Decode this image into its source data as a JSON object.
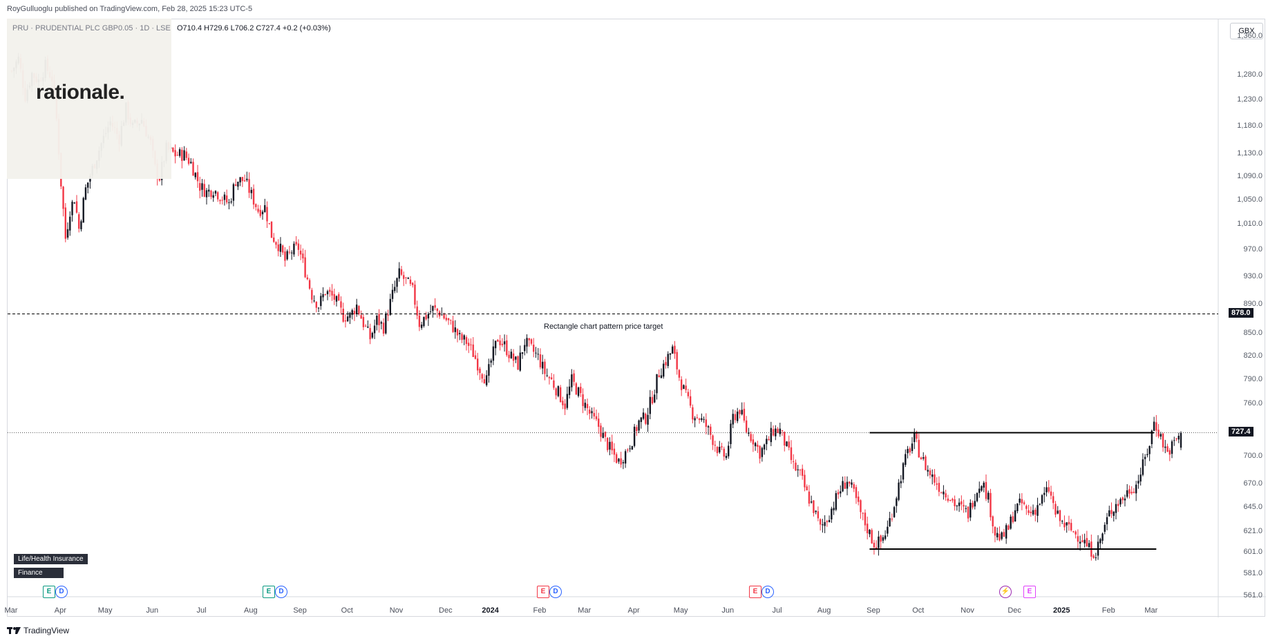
{
  "header": {
    "publisher": "RoyGulluoglu published on TradingView.com, Feb 28, 2025 15:23 UTC-5"
  },
  "symbol": {
    "line": "PRU · PRUDENTIAL PLC GBP0.05 · 1D · LSE",
    "ohlc": "O710.4  H729.6  L706.2  C727.4  +0.2 (+0.03%)"
  },
  "logo": {
    "text": "rationale."
  },
  "sector": {
    "industry": "Life/Health Insurance",
    "sector": "Finance"
  },
  "currency": "GBX",
  "annotation": "Rectangle chart pattern price target",
  "footer": {
    "brand": "TradingView"
  },
  "colors": {
    "up": "#131722",
    "down": "#f23645",
    "line": "#000000",
    "grid": "#e0e3eb"
  },
  "chart_data": {
    "type": "candlestick",
    "symbol": "PRU",
    "ylim": [
      561,
      1400
    ],
    "y_scale": "log",
    "y_ticks": [
      "1,360.0",
      "1,280.0",
      "1,230.0",
      "1,180.0",
      "1,130.0",
      "1,090.0",
      "1,050.0",
      "1,010.0",
      "970.0",
      "930.0",
      "890.0",
      "850.0",
      "820.0",
      "790.0",
      "760.0",
      "727.4",
      "700.0",
      "670.0",
      "645.0",
      "621.0",
      "601.0",
      "581.0",
      "561.0"
    ],
    "y_tick_values": [
      1360,
      1280,
      1230,
      1180,
      1130,
      1090,
      1050,
      1010,
      970,
      930,
      890,
      850,
      820,
      790,
      760,
      727.4,
      700,
      670,
      645,
      621,
      601,
      581,
      561
    ],
    "x_labels": [
      "Mar",
      "Apr",
      "May",
      "Jun",
      "Jul",
      "Aug",
      "Sep",
      "Oct",
      "Nov",
      "Dec",
      "2024",
      "Feb",
      "Mar",
      "Apr",
      "May",
      "Jun",
      "Jul",
      "Aug",
      "Sep",
      "Oct",
      "Nov",
      "Dec",
      "2025",
      "Feb",
      "Mar"
    ],
    "x_label_index": [
      0,
      22,
      42,
      63,
      85,
      107,
      129,
      150,
      172,
      194,
      214,
      236,
      256,
      278,
      299,
      320,
      342,
      363,
      385,
      405,
      427,
      448,
      469,
      490,
      509
    ],
    "target_line": 878.0,
    "last_price": 727.4,
    "rectangle_top": 727.4,
    "rectangle_bottom": 605,
    "close_path": [
      [
        0,
        1290
      ],
      [
        3,
        1315
      ],
      [
        6,
        1240
      ],
      [
        9,
        1285
      ],
      [
        12,
        1270
      ],
      [
        15,
        1300
      ],
      [
        18,
        1275
      ],
      [
        20,
        1195
      ],
      [
        22,
        1080
      ],
      [
        24,
        990
      ],
      [
        26,
        1035
      ],
      [
        28,
        1055
      ],
      [
        30,
        1005
      ],
      [
        33,
        1070
      ],
      [
        36,
        1105
      ],
      [
        40,
        1150
      ],
      [
        44,
        1190
      ],
      [
        48,
        1160
      ],
      [
        51,
        1215
      ],
      [
        54,
        1180
      ],
      [
        58,
        1195
      ],
      [
        62,
        1150
      ],
      [
        64,
        1105
      ],
      [
        66,
        1090
      ],
      [
        69,
        1140
      ],
      [
        73,
        1130
      ],
      [
        77,
        1130
      ],
      [
        80,
        1115
      ],
      [
        84,
        1075
      ],
      [
        87,
        1065
      ],
      [
        90,
        1070
      ],
      [
        94,
        1055
      ],
      [
        97,
        1045
      ],
      [
        100,
        1085
      ],
      [
        104,
        1085
      ],
      [
        107,
        1060
      ],
      [
        110,
        1035
      ],
      [
        113,
        1040
      ],
      [
        116,
        995
      ],
      [
        119,
        980
      ],
      [
        122,
        955
      ],
      [
        125,
        970
      ],
      [
        128,
        975
      ],
      [
        131,
        940
      ],
      [
        134,
        905
      ],
      [
        137,
        890
      ],
      [
        140,
        910
      ],
      [
        144,
        900
      ],
      [
        148,
        875
      ],
      [
        151,
        875
      ],
      [
        154,
        890
      ],
      [
        157,
        865
      ],
      [
        160,
        845
      ],
      [
        163,
        870
      ],
      [
        166,
        860
      ],
      [
        170,
        905
      ],
      [
        173,
        935
      ],
      [
        176,
        925
      ],
      [
        179,
        910
      ],
      [
        182,
        865
      ],
      [
        185,
        875
      ],
      [
        188,
        885
      ],
      [
        191,
        880
      ],
      [
        194,
        870
      ],
      [
        197,
        860
      ],
      [
        200,
        845
      ],
      [
        203,
        840
      ],
      [
        206,
        825
      ],
      [
        209,
        805
      ],
      [
        212,
        790
      ],
      [
        214,
        815
      ],
      [
        217,
        845
      ],
      [
        220,
        835
      ],
      [
        223,
        820
      ],
      [
        226,
        810
      ],
      [
        229,
        840
      ],
      [
        232,
        830
      ],
      [
        235,
        820
      ],
      [
        238,
        800
      ],
      [
        241,
        790
      ],
      [
        244,
        775
      ],
      [
        247,
        760
      ],
      [
        250,
        790
      ],
      [
        253,
        775
      ],
      [
        256,
        760
      ],
      [
        259,
        745
      ],
      [
        262,
        735
      ],
      [
        265,
        718
      ],
      [
        268,
        705
      ],
      [
        271,
        695
      ],
      [
        274,
        705
      ],
      [
        277,
        720
      ],
      [
        280,
        740
      ],
      [
        283,
        745
      ],
      [
        286,
        770
      ],
      [
        289,
        800
      ],
      [
        292,
        815
      ],
      [
        295,
        830
      ],
      [
        298,
        795
      ],
      [
        301,
        770
      ],
      [
        304,
        750
      ],
      [
        307,
        745
      ],
      [
        310,
        735
      ],
      [
        313,
        720
      ],
      [
        316,
        705
      ],
      [
        319,
        700
      ],
      [
        322,
        745
      ],
      [
        325,
        755
      ],
      [
        328,
        730
      ],
      [
        331,
        720
      ],
      [
        334,
        705
      ],
      [
        337,
        715
      ],
      [
        340,
        730
      ],
      [
        343,
        730
      ],
      [
        346,
        710
      ],
      [
        349,
        690
      ],
      [
        352,
        680
      ],
      [
        355,
        660
      ],
      [
        358,
        645
      ],
      [
        361,
        625
      ],
      [
        364,
        635
      ],
      [
        367,
        650
      ],
      [
        370,
        665
      ],
      [
        373,
        675
      ],
      [
        376,
        660
      ],
      [
        379,
        640
      ],
      [
        382,
        625
      ],
      [
        385,
        610
      ],
      [
        388,
        612
      ],
      [
        391,
        625
      ],
      [
        394,
        650
      ],
      [
        397,
        680
      ],
      [
        400,
        705
      ],
      [
        403,
        720
      ],
      [
        406,
        700
      ],
      [
        409,
        685
      ],
      [
        412,
        675
      ],
      [
        415,
        665
      ],
      [
        418,
        660
      ],
      [
        421,
        650
      ],
      [
        424,
        645
      ],
      [
        427,
        640
      ],
      [
        430,
        660
      ],
      [
        433,
        675
      ],
      [
        436,
        655
      ],
      [
        439,
        620
      ],
      [
        442,
        615
      ],
      [
        445,
        625
      ],
      [
        448,
        645
      ],
      [
        451,
        650
      ],
      [
        454,
        640
      ],
      [
        457,
        645
      ],
      [
        460,
        655
      ],
      [
        463,
        665
      ],
      [
        466,
        640
      ],
      [
        469,
        630
      ],
      [
        472,
        625
      ],
      [
        475,
        620
      ],
      [
        478,
        615
      ],
      [
        481,
        605
      ],
      [
        484,
        602
      ],
      [
        487,
        620
      ],
      [
        490,
        640
      ],
      [
        493,
        650
      ],
      [
        496,
        655
      ],
      [
        499,
        665
      ],
      [
        502,
        670
      ],
      [
        505,
        690
      ],
      [
        508,
        715
      ],
      [
        510,
        740
      ],
      [
        512,
        730
      ],
      [
        514,
        715
      ],
      [
        516,
        705
      ],
      [
        518,
        712
      ],
      [
        520,
        720
      ],
      [
        522,
        727.4
      ]
    ]
  }
}
